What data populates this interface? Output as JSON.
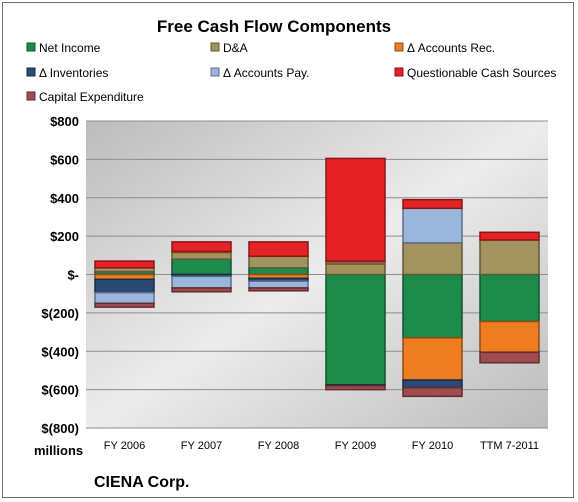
{
  "chart_data": {
    "type": "bar",
    "stacked": true,
    "title": "Free Cash Flow Components",
    "unit_label": "millions",
    "footer": "CIENA Corp.",
    "categories": [
      "FY 2006",
      "FY 2007",
      "FY 2008",
      "FY 2009",
      "FY 2010",
      "TTM 7-2011"
    ],
    "ylim": [
      -800,
      800
    ],
    "yticks": [
      800,
      600,
      400,
      200,
      0,
      -200,
      -400,
      -600,
      -800
    ],
    "ytick_labels": [
      "$800",
      "$600",
      "$400",
      "$200",
      "$-",
      "$(200)",
      "$(400)",
      "$(600)",
      "$(800)"
    ],
    "grid": true,
    "legend_position": "top",
    "series": [
      {
        "name": "Net Income",
        "color": "#1e8a4c",
        "values": [
          15,
          80,
          35,
          -575,
          -330,
          -245
        ]
      },
      {
        "name": "D&A",
        "color": "#a2945f",
        "values": [
          20,
          35,
          60,
          55,
          165,
          180
        ]
      },
      {
        "name": "Δ Accounts Rec.",
        "color": "#ee7d22",
        "values": [
          -25,
          5,
          -20,
          10,
          -220,
          -160
        ]
      },
      {
        "name": "Δ Inventories",
        "color": "#2a4a75",
        "values": [
          -70,
          -10,
          -15,
          -5,
          -40,
          0
        ]
      },
      {
        "name": "Δ Accounts Pay.",
        "color": "#9bb6dd",
        "values": [
          -55,
          -60,
          -35,
          5,
          180,
          0
        ]
      },
      {
        "name": "Questionable Cash Sources",
        "color": "#e52326",
        "values": [
          35,
          50,
          75,
          535,
          45,
          40
        ]
      },
      {
        "name": "Capital Expenditure",
        "color": "#a04b50",
        "values": [
          -20,
          -20,
          -15,
          -20,
          -45,
          -55
        ]
      }
    ]
  }
}
